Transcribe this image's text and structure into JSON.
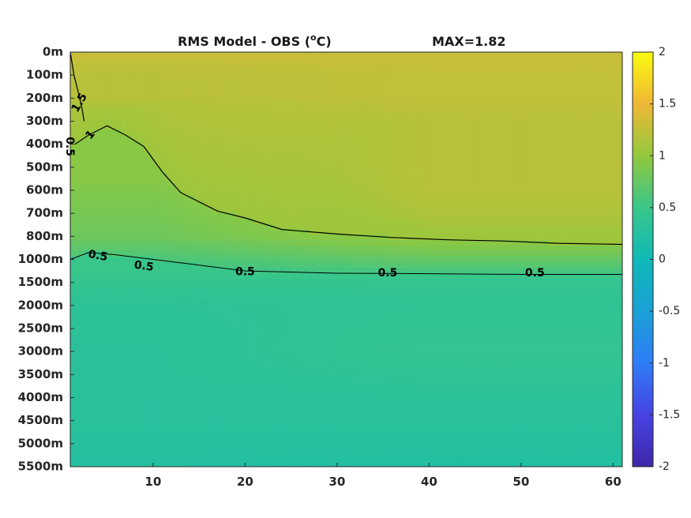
{
  "chart_data": {
    "type": "heatmap",
    "title_main": "RMS Model - OBS (",
    "title_sup": "o",
    "title_unit": "C)",
    "title_max": "MAX=1.82",
    "max_value": 1.82,
    "x": {
      "range": [
        1,
        61
      ],
      "ticks": [
        10,
        20,
        30,
        40,
        50,
        60
      ],
      "tick_labels": [
        "10",
        "20",
        "30",
        "40",
        "50",
        "60"
      ]
    },
    "y": {
      "depth_levels": [
        "0m",
        "100m",
        "200m",
        "300m",
        "400m",
        "500m",
        "600m",
        "700m",
        "800m",
        "1000m",
        "1500m",
        "2000m",
        "2500m",
        "3000m",
        "3500m",
        "4000m",
        "4500m",
        "5000m",
        "5500m"
      ],
      "direction": "reversed"
    },
    "colorbar": {
      "colormap": "parula",
      "range": [
        -2,
        2
      ],
      "ticks": [
        2,
        1.5,
        1,
        0.5,
        0,
        -0.5,
        -1,
        -1.5,
        -2
      ],
      "tick_labels": [
        "2",
        "1.5",
        "1",
        "0.5",
        "0",
        "-0.5",
        "-1",
        "-1.5",
        "-2"
      ]
    },
    "field_profile": {
      "depth_level_index": [
        0,
        1,
        2,
        3,
        4,
        5,
        6,
        7,
        8,
        9,
        10,
        11,
        12,
        13,
        14,
        15,
        16,
        17,
        18
      ],
      "rms_at_x10": [
        1.3,
        1.2,
        1.2,
        1.0,
        1.0,
        1.0,
        0.9,
        0.85,
        0.8,
        0.6,
        0.42,
        0.35,
        0.33,
        0.32,
        0.32,
        0.3,
        0.3,
        0.28,
        0.25
      ],
      "rms_at_x40": [
        1.3,
        1.25,
        1.25,
        1.2,
        1.2,
        1.2,
        1.2,
        1.15,
        1.05,
        0.75,
        0.42,
        0.38,
        0.4,
        0.42,
        0.38,
        0.33,
        0.3,
        0.28,
        0.22
      ]
    },
    "contours": [
      {
        "level": 1,
        "label": "1",
        "x": [
          1.5,
          3,
          5,
          7,
          9,
          11,
          13,
          15,
          17,
          20,
          24,
          30,
          36,
          42,
          48,
          54,
          61
        ],
        "depth_level": [
          4.0,
          3.6,
          3.2,
          3.6,
          4.1,
          5.2,
          6.1,
          6.5,
          6.9,
          7.2,
          7.7,
          7.9,
          8.05,
          8.15,
          8.2,
          8.3,
          8.35
        ]
      },
      {
        "level": 1.5,
        "label": "1.5",
        "x": [
          1,
          1.4,
          1.9,
          2.3,
          2.5
        ],
        "depth_level": [
          0,
          1.0,
          1.8,
          2.5,
          3.0
        ]
      },
      {
        "level": 0.5,
        "label": "0.5",
        "x": [
          1,
          3,
          6,
          10,
          14,
          20,
          30,
          40,
          50,
          61
        ],
        "depth_level": [
          9.0,
          8.7,
          8.8,
          9.0,
          9.2,
          9.5,
          9.6,
          9.62,
          9.65,
          9.65
        ]
      }
    ],
    "contour_labels": [
      {
        "text": "1.5",
        "x": 2.0,
        "depth_level": 2.2,
        "angle": -60
      },
      {
        "text": "0.5",
        "x": 0.9,
        "depth_level": 4.1,
        "angle": 90
      },
      {
        "text": "1",
        "x": 3.2,
        "depth_level": 3.6,
        "angle": -50
      },
      {
        "text": "0.5",
        "x": 4.0,
        "depth_level": 8.85,
        "angle": 10
      },
      {
        "text": "0.5",
        "x": 9.0,
        "depth_level": 9.3,
        "angle": 8
      },
      {
        "text": "0.5",
        "x": 20.0,
        "depth_level": 9.55,
        "angle": 0
      },
      {
        "text": "0.5",
        "x": 35.5,
        "depth_level": 9.6,
        "angle": 0
      },
      {
        "text": "0.5",
        "x": 51.5,
        "depth_level": 9.6,
        "angle": 0
      }
    ]
  }
}
